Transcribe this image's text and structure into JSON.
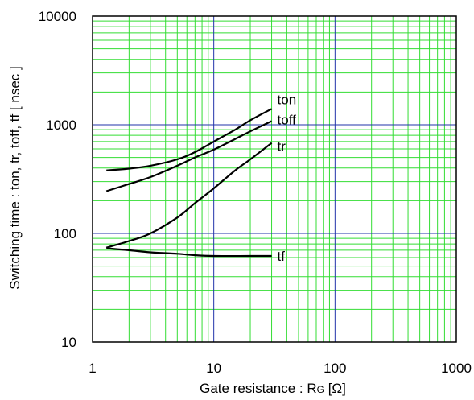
{
  "chart_data": {
    "type": "line",
    "xscale": "log",
    "yscale": "log",
    "xlim": [
      1,
      1000
    ],
    "ylim": [
      10,
      10000
    ],
    "xlabel": "Gate resistance : R",
    "xlabel_sub": "G",
    "xlabel_unit": " [Ω]",
    "ylabel": "Switching time : ton, tr, toff, tf [ nsec ]",
    "x_ticks": [
      {
        "value": 1,
        "label": "1"
      },
      {
        "value": 10,
        "label": "10"
      },
      {
        "value": 100,
        "label": "100"
      },
      {
        "value": 1000,
        "label": "1000"
      }
    ],
    "y_ticks": [
      {
        "value": 10,
        "label": "10"
      },
      {
        "value": 100,
        "label": "100"
      },
      {
        "value": 1000,
        "label": "1000"
      },
      {
        "value": 10000,
        "label": "10000"
      }
    ],
    "grid": true,
    "colors": {
      "minor_grid": "#33dd33",
      "major_grid": "#2233aa",
      "curve": "#000000",
      "frame": "#000000"
    },
    "series": [
      {
        "name": "ton",
        "points": [
          [
            1.3,
            380
          ],
          [
            2,
            395
          ],
          [
            3,
            420
          ],
          [
            5,
            480
          ],
          [
            7,
            560
          ],
          [
            10,
            700
          ],
          [
            15,
            900
          ],
          [
            20,
            1100
          ],
          [
            30,
            1400
          ]
        ],
        "label_at": [
          30,
          1400
        ]
      },
      {
        "name": "toff",
        "points": [
          [
            1.3,
            245
          ],
          [
            2,
            285
          ],
          [
            3,
            330
          ],
          [
            5,
            420
          ],
          [
            7,
            500
          ],
          [
            10,
            590
          ],
          [
            15,
            740
          ],
          [
            20,
            870
          ],
          [
            30,
            1080
          ]
        ],
        "label_at": [
          30,
          1080
        ]
      },
      {
        "name": "tr",
        "points": [
          [
            1.3,
            74
          ],
          [
            2,
            85
          ],
          [
            3,
            100
          ],
          [
            5,
            140
          ],
          [
            7,
            190
          ],
          [
            10,
            260
          ],
          [
            15,
            380
          ],
          [
            20,
            480
          ],
          [
            30,
            680
          ]
        ],
        "label_at": [
          30,
          680
        ]
      },
      {
        "name": "tf",
        "points": [
          [
            1.3,
            73
          ],
          [
            2,
            70
          ],
          [
            3,
            67
          ],
          [
            5,
            65
          ],
          [
            7,
            63
          ],
          [
            10,
            62
          ],
          [
            20,
            62
          ],
          [
            30,
            62
          ]
        ],
        "label_at": [
          30,
          62
        ]
      }
    ]
  }
}
